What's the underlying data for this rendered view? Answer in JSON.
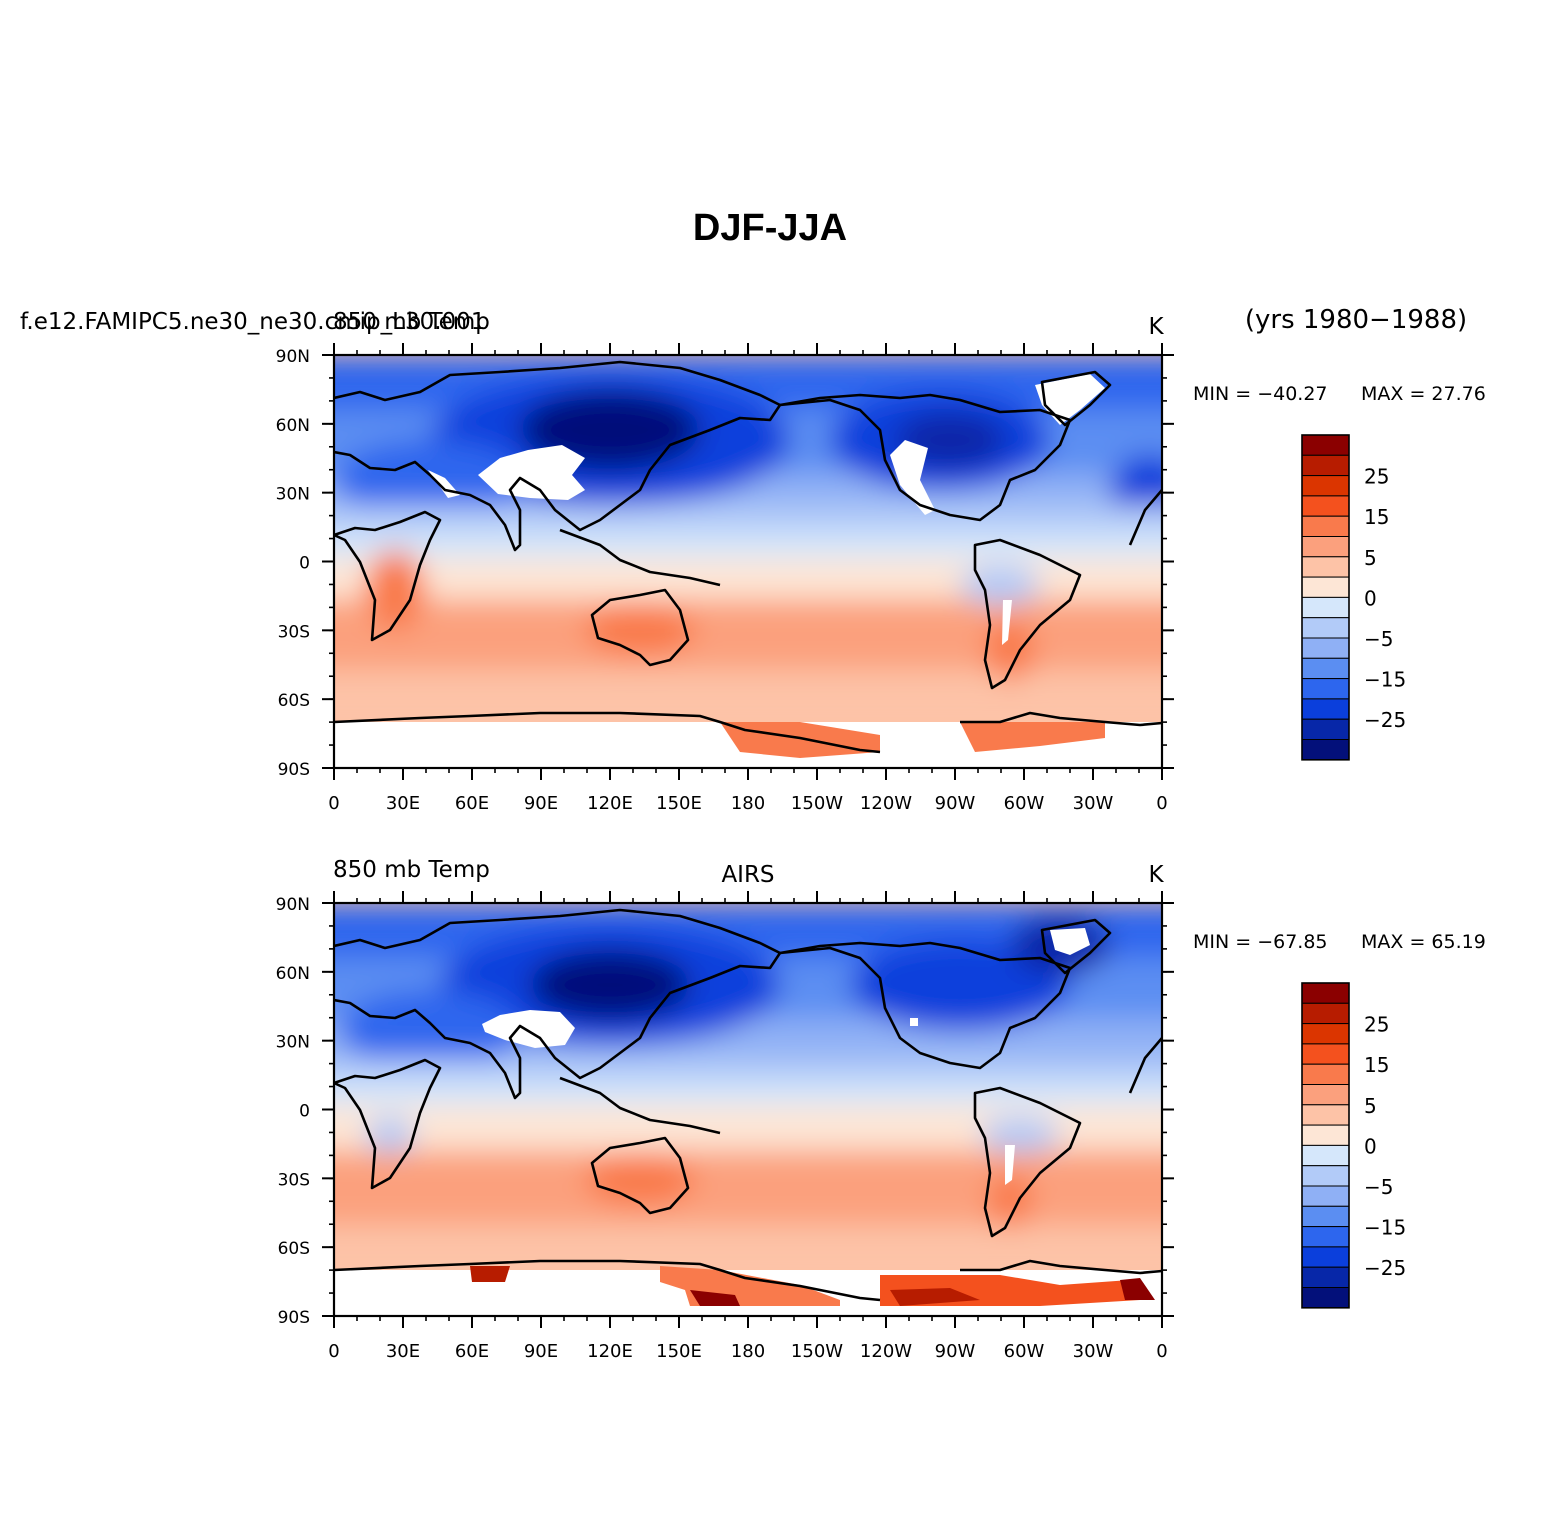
{
  "title": "DJF-JJA",
  "panels": [
    {
      "left_label": "f.e12.FAMIPC5.ne30_ne30.cmip_L30.001",
      "center_label": "850 mb Temp",
      "right_label": "K",
      "extra_label": "(yrs 1980−1988)",
      "min_label": "MIN = −40.27",
      "max_label": "MAX =  27.76",
      "field": "model"
    },
    {
      "left_label": "850 mb Temp",
      "center_label": "AIRS",
      "right_label": "K",
      "extra_label": "",
      "min_label": "MIN = −67.85",
      "max_label": "MAX =  65.19",
      "field": "obs"
    }
  ],
  "axes": {
    "lon_ticks": [
      "0",
      "30E",
      "60E",
      "90E",
      "120E",
      "150E",
      "180",
      "150W",
      "120W",
      "90W",
      "60W",
      "30W",
      "0"
    ],
    "lat_ticks": [
      "90N",
      "60N",
      "30N",
      "0",
      "30S",
      "60S",
      "90S"
    ]
  },
  "colorbar": {
    "labels": [
      "25",
      "15",
      "5",
      "0",
      "−5",
      "−15",
      "−25"
    ],
    "levels": [
      -35,
      -30,
      -25,
      -20,
      -15,
      -10,
      -5,
      -2,
      0,
      2,
      5,
      10,
      15,
      20,
      25,
      30,
      35
    ],
    "colors_top_to_bottom": [
      "#8b0000",
      "#b71c00",
      "#db3500",
      "#f4511e",
      "#f97a4c",
      "#fba07d",
      "#fdc3a7",
      "#fde6d6",
      "#d5e7fb",
      "#b2cbf8",
      "#8fb0f5",
      "#5b8ef2",
      "#2d66ee",
      "#0b3fdc",
      "#0727a8",
      "#03107a"
    ]
  },
  "colors": {
    "land_mask": "#ffffff",
    "coastline": "#000000"
  }
}
